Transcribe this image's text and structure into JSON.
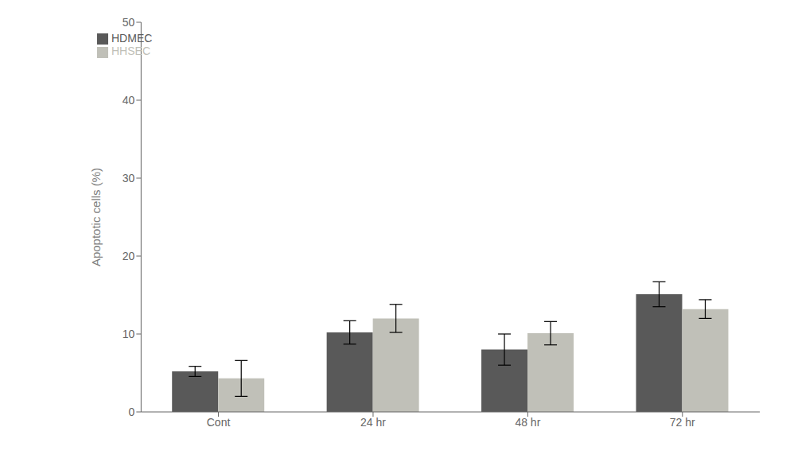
{
  "chart_data": {
    "type": "bar",
    "categories": [
      "Cont",
      "24 hr",
      "48 hr",
      "72 hr"
    ],
    "series": [
      {
        "name": "HDMEC",
        "color": "#595959",
        "values": [
          5.2,
          10.2,
          8.0,
          15.1
        ],
        "errors": [
          0.65,
          1.5,
          2.0,
          1.6
        ]
      },
      {
        "name": "HHSEC",
        "color": "#c0c0b8",
        "values": [
          4.3,
          12.0,
          10.1,
          13.2
        ],
        "errors": [
          2.3,
          1.8,
          1.5,
          1.2
        ]
      }
    ],
    "ylabel": "Apoptotic cells (%)",
    "ylim": [
      0,
      50
    ],
    "yticks": [
      0,
      10,
      20,
      30,
      40,
      50
    ],
    "grid": false,
    "legend": "upper left"
  }
}
